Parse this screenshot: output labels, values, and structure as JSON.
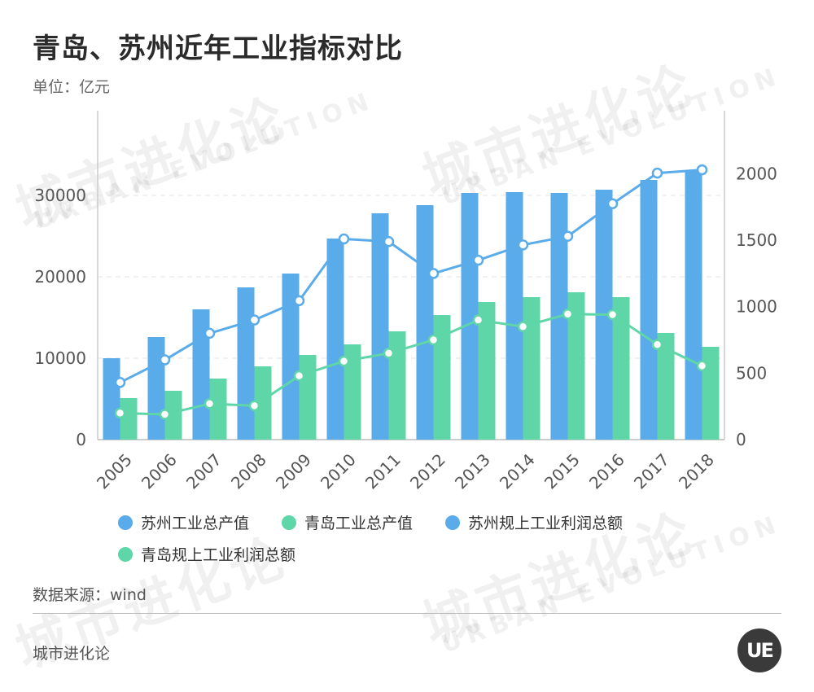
{
  "title": "青岛、苏州近年工业指标对比",
  "unit": "单位：亿元",
  "source": "数据来源：wind",
  "brand": "城市进化论",
  "logo_text": "UE",
  "watermark": {
    "cn": "城市进化论",
    "en": "URBAN EVOLUTION"
  },
  "colors": {
    "suzhou": "#5aabea",
    "qingdao": "#5fd6a7",
    "line_suzhou": "#5aabea",
    "line_qingdao": "#5fd6a7"
  },
  "legend": [
    {
      "label": "苏州工业总产值",
      "color": "#5aabea"
    },
    {
      "label": "青岛工业总产值",
      "color": "#5fd6a7"
    },
    {
      "label": "苏州规上工业利润总额",
      "color": "#5aabea"
    },
    {
      "label": "青岛规上工业利润总额",
      "color": "#5fd6a7"
    }
  ],
  "chart_data": {
    "type": "bar",
    "categories": [
      "2005",
      "2006",
      "2007",
      "2008",
      "2009",
      "2010",
      "2011",
      "2012",
      "2013",
      "2014",
      "2015",
      "2016",
      "2017",
      "2018"
    ],
    "series": [
      {
        "name": "苏州工业总产值",
        "type": "bar",
        "axis": "left",
        "values": [
          10000,
          12600,
          16000,
          18700,
          20400,
          24700,
          27800,
          28800,
          30300,
          30400,
          30300,
          30700,
          31900,
          33000
        ]
      },
      {
        "name": "青岛工业总产值",
        "type": "bar",
        "axis": "left",
        "values": [
          5100,
          6000,
          7500,
          9000,
          10400,
          11700,
          13300,
          15300,
          16900,
          17500,
          18100,
          17500,
          13100,
          11400
        ]
      },
      {
        "name": "苏州规上工业利润总额",
        "type": "line",
        "axis": "right",
        "values": [
          430,
          600,
          800,
          900,
          1045,
          1510,
          1490,
          1250,
          1350,
          1465,
          1530,
          1775,
          2005,
          2030
        ]
      },
      {
        "name": "青岛规上工业利润总额",
        "type": "line",
        "axis": "right",
        "values": [
          200,
          190,
          270,
          255,
          480,
          590,
          650,
          750,
          900,
          850,
          945,
          940,
          715,
          555
        ]
      }
    ],
    "left_axis": {
      "ylim": [
        0,
        40000
      ],
      "ticks": [
        0,
        10000,
        20000,
        30000
      ]
    },
    "right_axis": {
      "ylim": [
        0,
        2450
      ],
      "ticks": [
        0,
        500,
        1000,
        1500,
        2000
      ]
    },
    "grid": true,
    "legend_position": "bottom"
  }
}
